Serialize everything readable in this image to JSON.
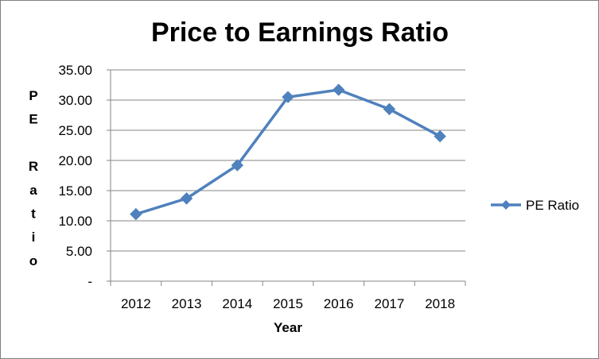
{
  "chart_data": {
    "type": "line",
    "title": "Price to Earnings Ratio",
    "xlabel": "Year",
    "ylabel_chars": [
      "P",
      "E",
      "",
      "R",
      "a",
      "t",
      "i",
      "o"
    ],
    "categories": [
      "2012",
      "2013",
      "2014",
      "2015",
      "2016",
      "2017",
      "2018"
    ],
    "ylim": [
      0,
      35
    ],
    "y_ticks": [
      0,
      5,
      10,
      15,
      20,
      25,
      30,
      35
    ],
    "y_tick_labels": [
      "-",
      "5.00",
      "10.00",
      "15.00",
      "20.00",
      "25.00",
      "30.00",
      "35.00"
    ],
    "grid": true,
    "legend_position": "right",
    "series": [
      {
        "name": "PE Ratio",
        "values": [
          11.1,
          13.7,
          19.2,
          30.5,
          31.7,
          28.5,
          24.0
        ],
        "color": "#4F81BD",
        "marker": "diamond"
      }
    ]
  }
}
